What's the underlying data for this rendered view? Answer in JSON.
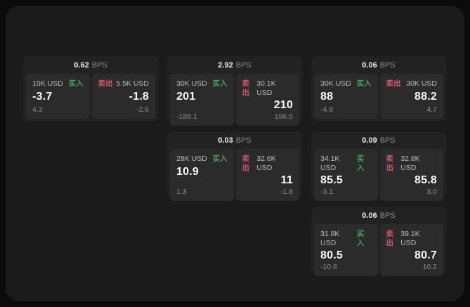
{
  "labels": {
    "unit": "BPS",
    "buy": "买入",
    "sell": "卖出"
  },
  "colors": {
    "buy": "#46a05e",
    "sell": "#d25670",
    "value_text": "#fafafa",
    "muted_text": "#8a8a8a",
    "panel_bg": "#1b1b1b",
    "card_bg": "#222222",
    "tile_bg": "#2b2b2b"
  },
  "cards": [
    {
      "bps": "0.62",
      "buy": {
        "amount": "10K USD",
        "value": "-3.7",
        "delta": "4.3"
      },
      "sell": {
        "amount": "5.5K USD",
        "value": "-1.8",
        "delta": "-2.6"
      }
    },
    {
      "bps": "2.92",
      "buy": {
        "amount": "30K USD",
        "value": "201",
        "delta": "-188.1"
      },
      "sell": {
        "amount": "30.1K USD",
        "value": "210",
        "delta": "196.5"
      }
    },
    {
      "bps": "0.06",
      "buy": {
        "amount": "30K USD",
        "value": "88",
        "delta": "-4.9"
      },
      "sell": {
        "amount": "30K USD",
        "value": "88.2",
        "delta": "4.7"
      }
    },
    {
      "bps": "0.03",
      "buy": {
        "amount": "28K USD",
        "value": "10.9",
        "delta": "1.3"
      },
      "sell": {
        "amount": "32.6K USD",
        "value": "11",
        "delta": "-1.8"
      }
    },
    {
      "bps": "0.09",
      "buy": {
        "amount": "34.1K USD",
        "value": "85.5",
        "delta": "-3.1"
      },
      "sell": {
        "amount": "32.8K USD",
        "value": "85.8",
        "delta": "3.0"
      }
    },
    {
      "bps": "0.06",
      "buy": {
        "amount": "31.8K USD",
        "value": "80.5",
        "delta": "-10.8"
      },
      "sell": {
        "amount": "39.1K USD",
        "value": "80.7",
        "delta": "10.2"
      }
    }
  ]
}
